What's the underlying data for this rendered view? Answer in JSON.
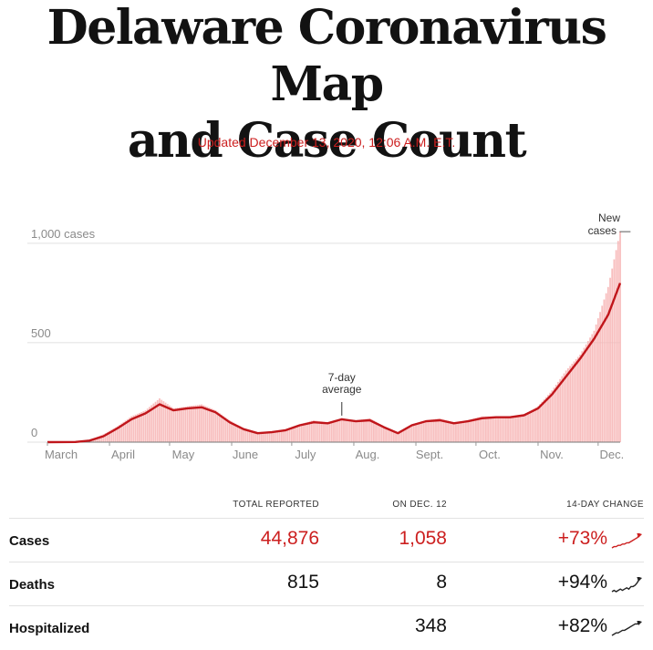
{
  "header": {
    "title_line1": "Delaware Coronavirus Map",
    "title_line2": "and Case Count",
    "updated": "Updated December 13, 2020, 12:06 A.M. E.T."
  },
  "colors": {
    "accent_red": "#cc1f1f",
    "bar_pink": "#f7b3b3",
    "text": "#121212"
  },
  "chart_data": {
    "type": "bar",
    "x_start": "2020-03-01",
    "x_end": "2020-12-12",
    "ylim": [
      0,
      1100
    ],
    "y_ticks": [
      {
        "value": 0,
        "label": "0"
      },
      {
        "value": 500,
        "label": "500"
      },
      {
        "value": 1000,
        "label": "1,000 cases"
      }
    ],
    "x_ticks": [
      {
        "date": "2020-03-01",
        "label": "March"
      },
      {
        "date": "2020-04-01",
        "label": "April"
      },
      {
        "date": "2020-05-01",
        "label": "May"
      },
      {
        "date": "2020-06-01",
        "label": "June"
      },
      {
        "date": "2020-07-01",
        "label": "July"
      },
      {
        "date": "2020-08-01",
        "label": "Aug."
      },
      {
        "date": "2020-09-01",
        "label": "Sept."
      },
      {
        "date": "2020-10-01",
        "label": "Oct."
      },
      {
        "date": "2020-11-01",
        "label": "Nov."
      },
      {
        "date": "2020-12-01",
        "label": "Dec."
      }
    ],
    "series": [
      {
        "name": "New cases",
        "display": "bars",
        "color": "#f7b3b3",
        "points": [
          [
            "2020-03-01",
            0
          ],
          [
            "2020-03-15",
            2
          ],
          [
            "2020-03-22",
            10
          ],
          [
            "2020-03-29",
            40
          ],
          [
            "2020-04-05",
            80
          ],
          [
            "2020-04-12",
            130
          ],
          [
            "2020-04-19",
            160
          ],
          [
            "2020-04-26",
            220
          ],
          [
            "2020-05-03",
            170
          ],
          [
            "2020-05-10",
            180
          ],
          [
            "2020-05-17",
            190
          ],
          [
            "2020-05-24",
            160
          ],
          [
            "2020-05-31",
            110
          ],
          [
            "2020-06-07",
            70
          ],
          [
            "2020-06-14",
            50
          ],
          [
            "2020-06-21",
            55
          ],
          [
            "2020-06-28",
            65
          ],
          [
            "2020-07-05",
            90
          ],
          [
            "2020-07-12",
            110
          ],
          [
            "2020-07-19",
            100
          ],
          [
            "2020-07-26",
            120
          ],
          [
            "2020-08-02",
            110
          ],
          [
            "2020-08-09",
            120
          ],
          [
            "2020-08-16",
            80
          ],
          [
            "2020-08-23",
            50
          ],
          [
            "2020-08-30",
            90
          ],
          [
            "2020-09-06",
            110
          ],
          [
            "2020-09-13",
            120
          ],
          [
            "2020-09-20",
            100
          ],
          [
            "2020-09-27",
            110
          ],
          [
            "2020-10-04",
            130
          ],
          [
            "2020-10-11",
            130
          ],
          [
            "2020-10-18",
            130
          ],
          [
            "2020-10-25",
            140
          ],
          [
            "2020-11-01",
            180
          ],
          [
            "2020-11-08",
            260
          ],
          [
            "2020-11-15",
            360
          ],
          [
            "2020-11-22",
            440
          ],
          [
            "2020-11-29",
            560
          ],
          [
            "2020-12-06",
            780
          ],
          [
            "2020-12-12",
            1058
          ]
        ]
      },
      {
        "name": "7-day average",
        "display": "line",
        "color": "#c0161b",
        "points": [
          [
            "2020-03-01",
            0
          ],
          [
            "2020-03-15",
            1
          ],
          [
            "2020-03-22",
            8
          ],
          [
            "2020-03-29",
            30
          ],
          [
            "2020-04-05",
            70
          ],
          [
            "2020-04-12",
            115
          ],
          [
            "2020-04-19",
            145
          ],
          [
            "2020-04-26",
            190
          ],
          [
            "2020-05-03",
            160
          ],
          [
            "2020-05-10",
            170
          ],
          [
            "2020-05-17",
            175
          ],
          [
            "2020-05-24",
            150
          ],
          [
            "2020-05-31",
            100
          ],
          [
            "2020-06-07",
            65
          ],
          [
            "2020-06-14",
            45
          ],
          [
            "2020-06-21",
            50
          ],
          [
            "2020-06-28",
            60
          ],
          [
            "2020-07-05",
            85
          ],
          [
            "2020-07-12",
            100
          ],
          [
            "2020-07-19",
            95
          ],
          [
            "2020-07-26",
            115
          ],
          [
            "2020-08-02",
            105
          ],
          [
            "2020-08-09",
            110
          ],
          [
            "2020-08-16",
            75
          ],
          [
            "2020-08-23",
            45
          ],
          [
            "2020-08-30",
            85
          ],
          [
            "2020-09-06",
            105
          ],
          [
            "2020-09-13",
            110
          ],
          [
            "2020-09-20",
            95
          ],
          [
            "2020-09-27",
            105
          ],
          [
            "2020-10-04",
            120
          ],
          [
            "2020-10-11",
            125
          ],
          [
            "2020-10-18",
            125
          ],
          [
            "2020-10-25",
            135
          ],
          [
            "2020-11-01",
            170
          ],
          [
            "2020-11-08",
            240
          ],
          [
            "2020-11-15",
            330
          ],
          [
            "2020-11-22",
            420
          ],
          [
            "2020-11-29",
            520
          ],
          [
            "2020-12-06",
            640
          ],
          [
            "2020-12-12",
            800
          ]
        ]
      }
    ],
    "annotations": [
      {
        "text_lines": [
          "New",
          "cases —"
        ],
        "target": "New cases"
      },
      {
        "text_lines": [
          "7-day",
          "average"
        ],
        "target": "7-day average"
      }
    ]
  },
  "table": {
    "headers": [
      "TOTAL REPORTED",
      "ON DEC. 12",
      "14-DAY CHANGE"
    ],
    "rows": [
      {
        "label": "Cases",
        "total": "44,876",
        "on_day": "1,058",
        "change": "+73%",
        "highlight": true,
        "trend": [
          2,
          3,
          3,
          4,
          4,
          5,
          5,
          6,
          6,
          7,
          8,
          9,
          10,
          12
        ]
      },
      {
        "label": "Deaths",
        "total": "815",
        "on_day": "8",
        "change": "+94%",
        "highlight": false,
        "trend": [
          2,
          3,
          2,
          3,
          4,
          3,
          4,
          5,
          4,
          6,
          6,
          7,
          9,
          12
        ]
      },
      {
        "label": "Hospitalized",
        "total": "",
        "on_day": "348",
        "change": "+82%",
        "highlight": false,
        "trend": [
          2,
          3,
          4,
          4,
          5,
          6,
          6,
          7,
          8,
          9,
          10,
          11,
          11,
          12
        ]
      }
    ]
  }
}
